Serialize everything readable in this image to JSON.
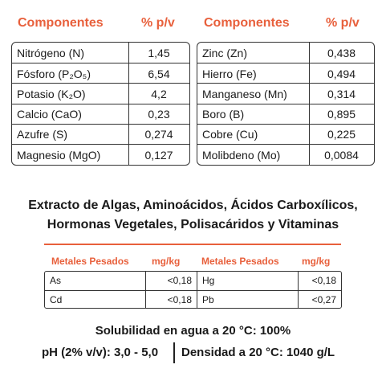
{
  "composition": {
    "header": {
      "component": "Componentes",
      "unit": "% p/v"
    },
    "left": [
      [
        "Nitrógeno (N)",
        "1,45"
      ],
      [
        "Fósforo (P₂O₅)",
        "6,54"
      ],
      [
        "Potasio (K₂O)",
        "4,2"
      ],
      [
        "Calcio (CaO)",
        "0,23"
      ],
      [
        "Azufre (S)",
        "0,274"
      ],
      [
        "Magnesio (MgO)",
        "0,127"
      ]
    ],
    "right": [
      [
        "Zinc (Zn)",
        "0,438"
      ],
      [
        "Hierro (Fe)",
        "0,494"
      ],
      [
        "Manganeso (Mn)",
        "0,314"
      ],
      [
        "Boro (B)",
        "0,895"
      ],
      [
        "Cobre (Cu)",
        "0,225"
      ],
      [
        "Molibdeno (Mo)",
        "0,0084"
      ]
    ]
  },
  "extract": {
    "line1": "Extracto de Algas, Aminoácidos, Ácidos Carboxílicos,",
    "line2": "Hormonas Vegetales, Polisacáridos y Vitaminas"
  },
  "metals": {
    "header": {
      "name": "Metales Pesados",
      "unit": "mg/kg"
    },
    "rows": [
      [
        "As",
        "<0,18",
        "Hg",
        "<0,18"
      ],
      [
        "Cd",
        "<0,18",
        "Pb",
        "<0,27"
      ]
    ]
  },
  "properties": {
    "solubility": "Solubilidad en agua a 20 °C: 100%",
    "ph": "pH (2% v/v): 3,0 - 5,0",
    "density": "Densidad a 20 °C: 1040 g/L"
  }
}
